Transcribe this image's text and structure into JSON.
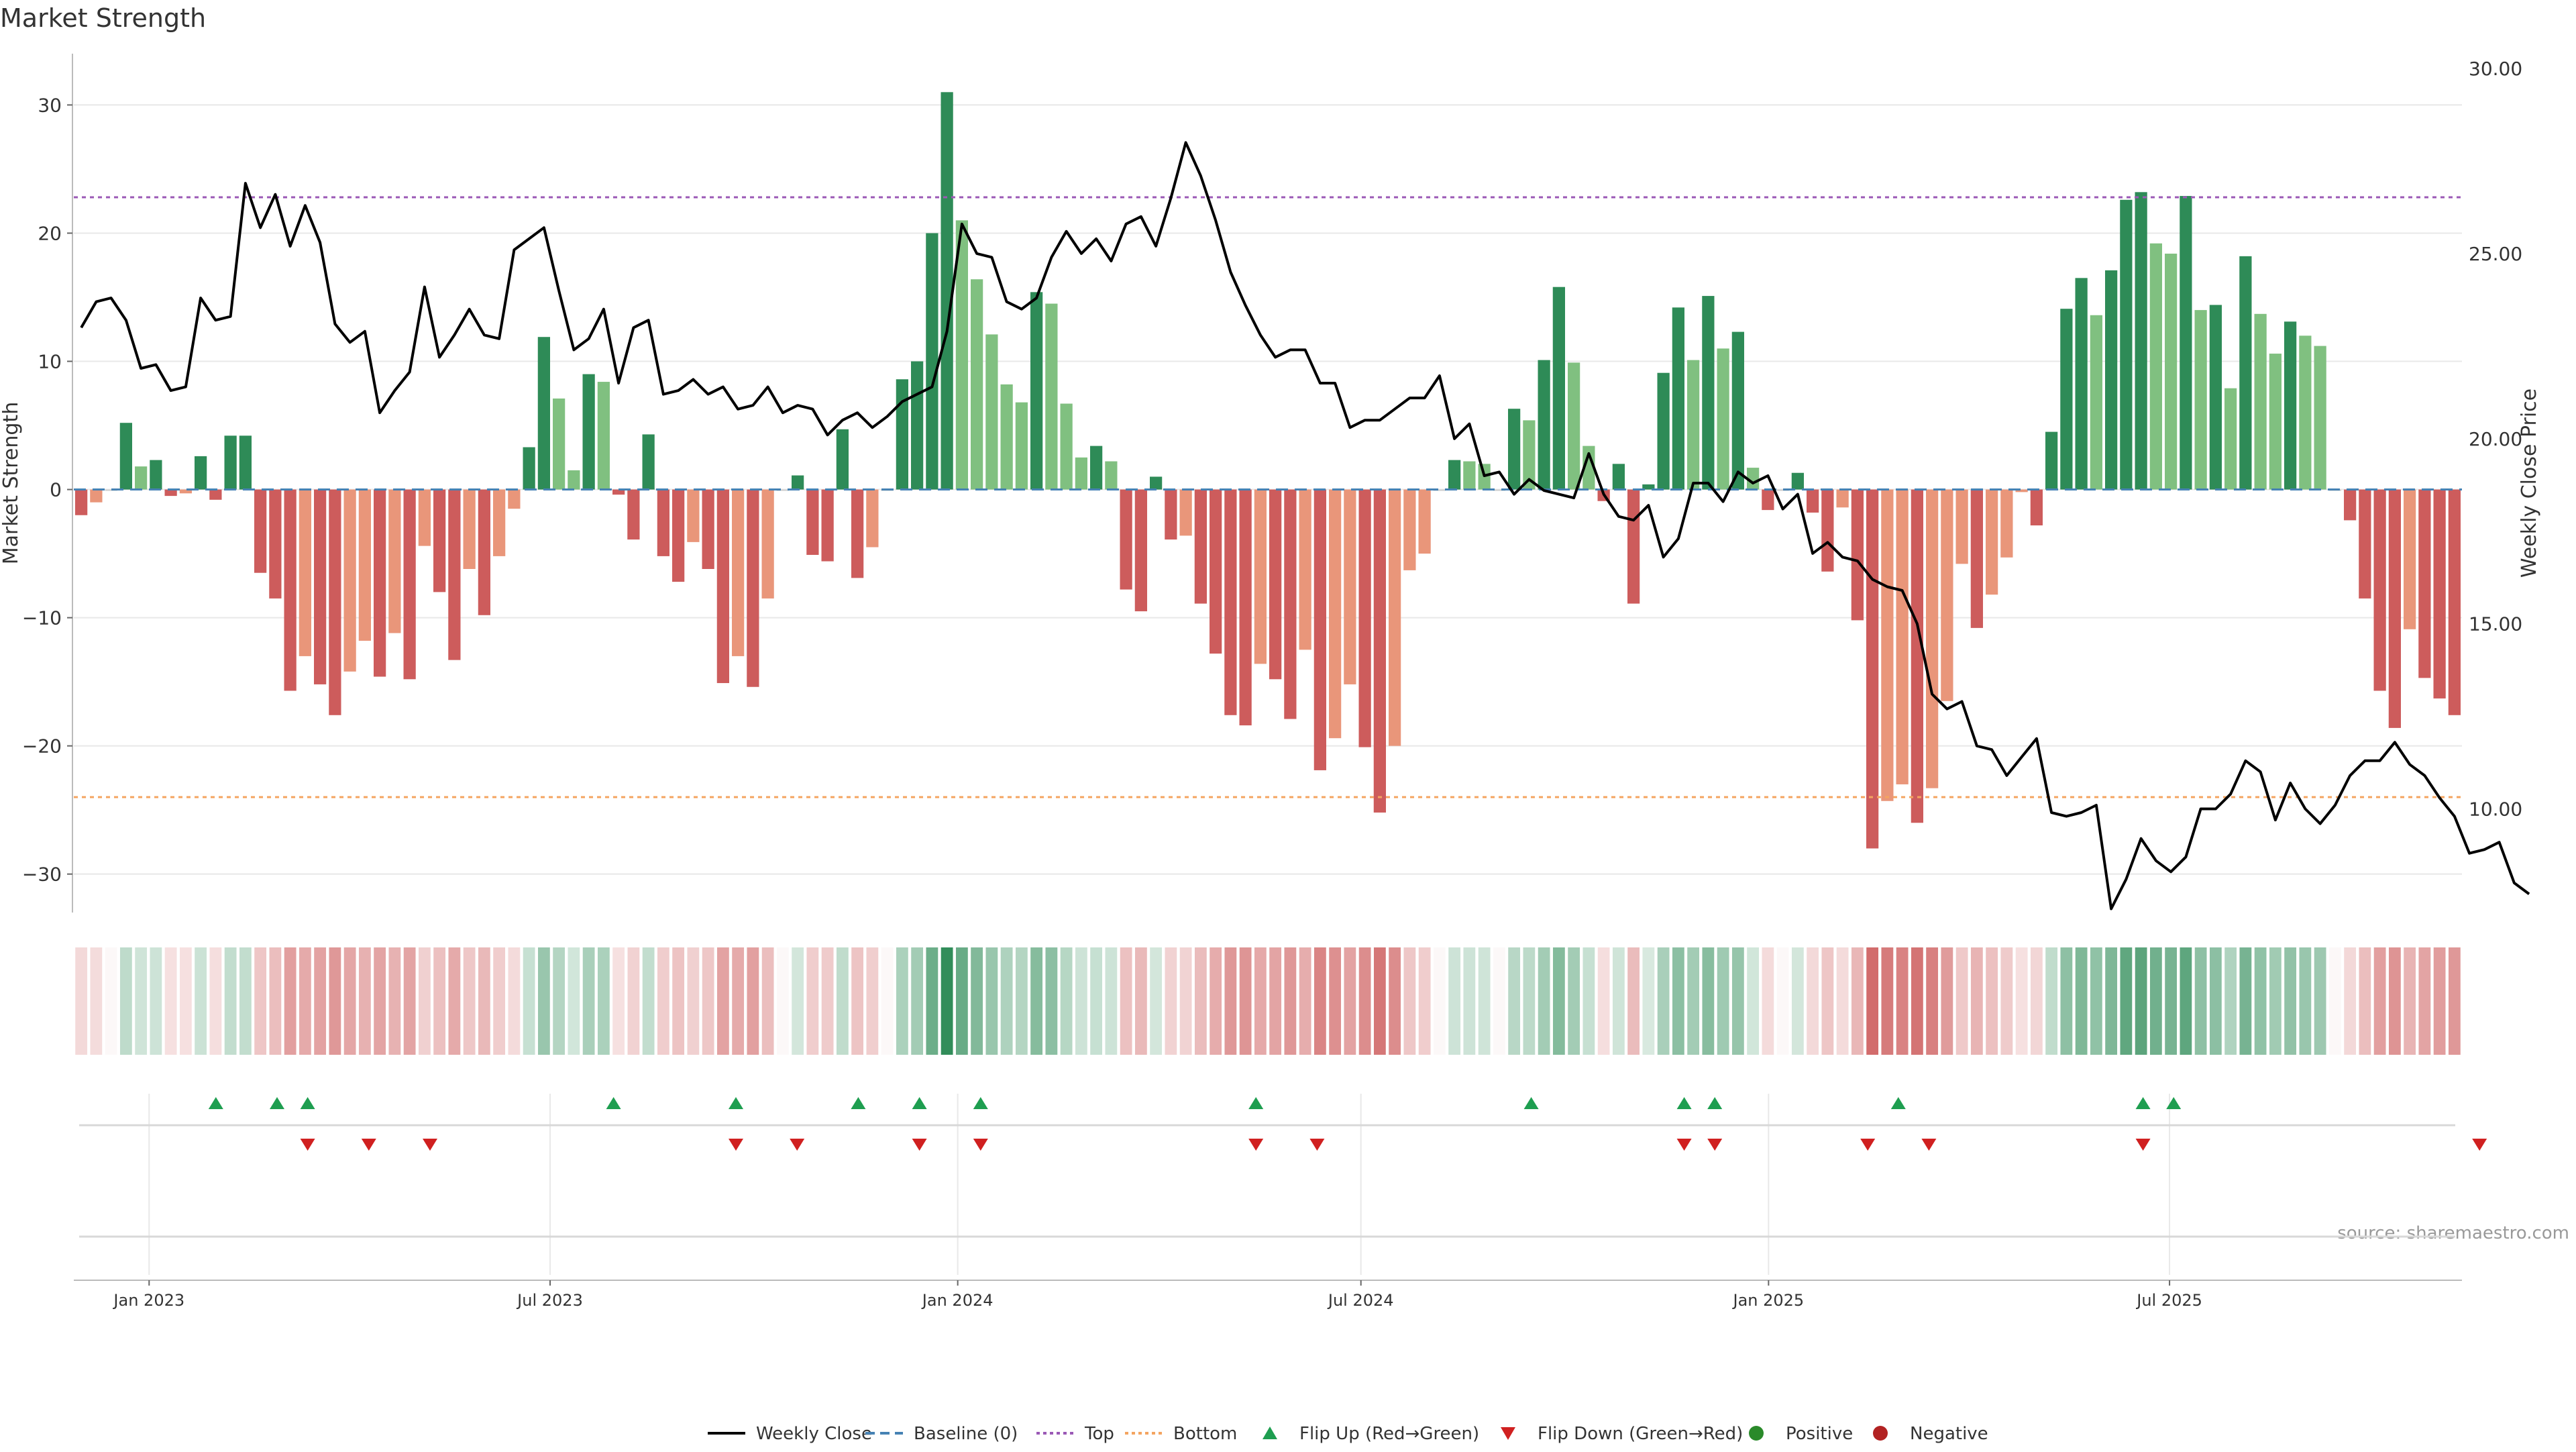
{
  "chart_data": {
    "type": "bar",
    "title": "Market Strength",
    "ylabel_left": "Market Strength",
    "ylabel_right": "Weekly Close Price",
    "ylim_left": [
      -33,
      34
    ],
    "ylim_right": [
      7.2,
      30.4
    ],
    "yticks_left": [
      30,
      20,
      10,
      0,
      -10,
      -20,
      -30
    ],
    "yticks_left_labels": [
      "30",
      "20",
      "10",
      "0",
      "−10",
      "−20",
      "−30"
    ],
    "yticks_right": [
      30,
      25,
      20,
      15,
      10
    ],
    "yticks_right_labels": [
      "30.00",
      "25.00",
      "20.00",
      "15.00",
      "10.00"
    ],
    "top_threshold": 22.8,
    "bottom_threshold": -24.0,
    "x_start": "2022-11-28",
    "x_end": "2025-11-10",
    "x_ticks": [
      {
        "date": "2023-01-01",
        "label": "Jan 2023"
      },
      {
        "date": "2023-07-01",
        "label": "Jul 2023"
      },
      {
        "date": "2024-01-01",
        "label": "Jan 2024"
      },
      {
        "date": "2024-07-01",
        "label": "Jul 2024"
      },
      {
        "date": "2025-01-01",
        "label": "Jan 2025"
      },
      {
        "date": "2025-07-01",
        "label": "Jul 2025"
      }
    ],
    "strength": [
      -2,
      -1,
      0,
      5.2,
      1.8,
      2.3,
      -0.5,
      -0.3,
      2.6,
      -0.8,
      4.2,
      4.2,
      -6.5,
      -8.5,
      -15.7,
      -13,
      -15.2,
      -17.6,
      -14.2,
      -11.8,
      -14.6,
      -11.2,
      -14.8,
      -4.4,
      -8,
      -13.3,
      -6.2,
      -9.8,
      -5.2,
      -1.5,
      3.3,
      11.9,
      7.1,
      1.5,
      9,
      8.4,
      -0.4,
      -3.9,
      4.3,
      -5.2,
      -7.2,
      -4.1,
      -6.2,
      -15.1,
      -13,
      -15.4,
      -8.5,
      0,
      1.1,
      -5.1,
      -5.6,
      4.7,
      -6.9,
      -4.5,
      0,
      8.6,
      10,
      20,
      31,
      21,
      16.4,
      12.1,
      8.2,
      6.8,
      15.4,
      14.5,
      6.7,
      2.5,
      3.4,
      2.2,
      -7.8,
      -9.5,
      1,
      -3.9,
      -3.6,
      -8.9,
      -12.8,
      -17.6,
      -18.4,
      -13.6,
      -14.8,
      -17.9,
      -12.5,
      -21.9,
      -19.4,
      -15.2,
      -20.1,
      -25.2,
      -20,
      -6.3,
      -5,
      0,
      2.3,
      2.2,
      2,
      0,
      6.3,
      5.4,
      10.1,
      15.8,
      9.9,
      3.4,
      -0.9,
      2,
      -8.9,
      0.4,
      9.1,
      14.2,
      10.1,
      15.1,
      11,
      12.3,
      1.7,
      -1.6,
      0,
      1.3,
      -1.8,
      -6.4,
      -1.4,
      -10.2,
      -28,
      -24.3,
      -23,
      -26,
      -23.3,
      -16.5,
      -5.8,
      -10.8,
      -8.2,
      -5.3,
      -0.2,
      -2.8,
      4.5,
      14.1,
      16.5,
      13.6,
      17.1,
      22.6,
      23.2,
      19.2,
      18.4,
      22.9,
      14,
      14.4,
      7.9,
      18.2,
      13.7,
      10.6,
      13.1,
      12,
      11.2,
      0,
      -2.4,
      -8.5,
      -15.7,
      -18.6,
      -10.9,
      -14.7,
      -16.3,
      -17.6
    ],
    "weekly_close": [
      23.0,
      23.7,
      23.8,
      23.2,
      21.9,
      22.0,
      21.3,
      21.4,
      23.8,
      23.2,
      23.3,
      26.9,
      25.7,
      26.6,
      25.2,
      26.3,
      25.3,
      23.1,
      22.6,
      22.9,
      20.7,
      21.3,
      21.8,
      24.1,
      22.2,
      22.8,
      23.5,
      22.8,
      22.7,
      25.1,
      25.4,
      25.7,
      24.0,
      22.4,
      22.7,
      23.5,
      21.5,
      23.0,
      23.2,
      21.2,
      21.3,
      21.6,
      21.2,
      21.4,
      20.8,
      20.9,
      21.4,
      20.7,
      20.9,
      20.8,
      20.1,
      20.5,
      20.7,
      20.3,
      20.6,
      21.0,
      21.2,
      21.4,
      22.9,
      25.8,
      25.0,
      24.9,
      23.7,
      23.5,
      23.8,
      24.9,
      25.6,
      25.0,
      25.4,
      24.8,
      25.8,
      26.0,
      25.2,
      26.5,
      28.0,
      27.1,
      25.9,
      24.5,
      23.6,
      22.8,
      22.2,
      22.4,
      22.4,
      21.5,
      21.5,
      20.3,
      20.5,
      20.5,
      20.8,
      21.1,
      21.1,
      21.7,
      20.0,
      20.4,
      19.0,
      19.1,
      18.5,
      18.9,
      18.6,
      18.5,
      18.4,
      19.6,
      18.5,
      17.9,
      17.8,
      18.2,
      16.8,
      17.3,
      18.8,
      18.8,
      18.3,
      19.1,
      18.8,
      19.0,
      18.1,
      18.5,
      16.9,
      17.2,
      16.8,
      16.7,
      16.2,
      16.0,
      15.9,
      15.0,
      13.1,
      12.7,
      12.9,
      11.7,
      11.6,
      10.9,
      11.4,
      11.9,
      9.9,
      9.8,
      9.9,
      10.1,
      7.3,
      8.1,
      9.2,
      8.6,
      8.3,
      8.7,
      10.0,
      10.0,
      10.4,
      11.3,
      11.0,
      9.7,
      10.7,
      10.0,
      9.6,
      10.1,
      10.9,
      11.3,
      11.3,
      11.8,
      11.2,
      10.9,
      10.3,
      9.8,
      8.8,
      8.9,
      9.1,
      8.0,
      7.7
    ],
    "flip_up": [
      3,
      5,
      6,
      16,
      20,
      24,
      26,
      28,
      37,
      46,
      51,
      52,
      58,
      66,
      67
    ],
    "flip_down": [
      6,
      8,
      10,
      20,
      22,
      26,
      28,
      37,
      39,
      51,
      52,
      57,
      59,
      66,
      77
    ],
    "legend": [
      "Weekly Close",
      "Baseline (0)",
      "Top",
      "Bottom",
      "Flip Up (Red→Green)",
      "Flip Down (Green→Red)",
      "Positive",
      "Negative"
    ],
    "legend_placement": "bottom-center",
    "source": "source: sharemaestro.com",
    "colors": {
      "pos_strong": "#2e8b57",
      "pos_weak": "#80c080",
      "neg_strong": "#cd5c5c",
      "neg_weak": "#e9967a",
      "top_line": "#9b59b6",
      "bottom_line": "#f4a460",
      "baseline": "#4682b4",
      "flip_up": "#1e9e50",
      "flip_down": "#d02020",
      "positive_dot": "#2a8a2a",
      "negative_dot": "#b22222"
    }
  }
}
